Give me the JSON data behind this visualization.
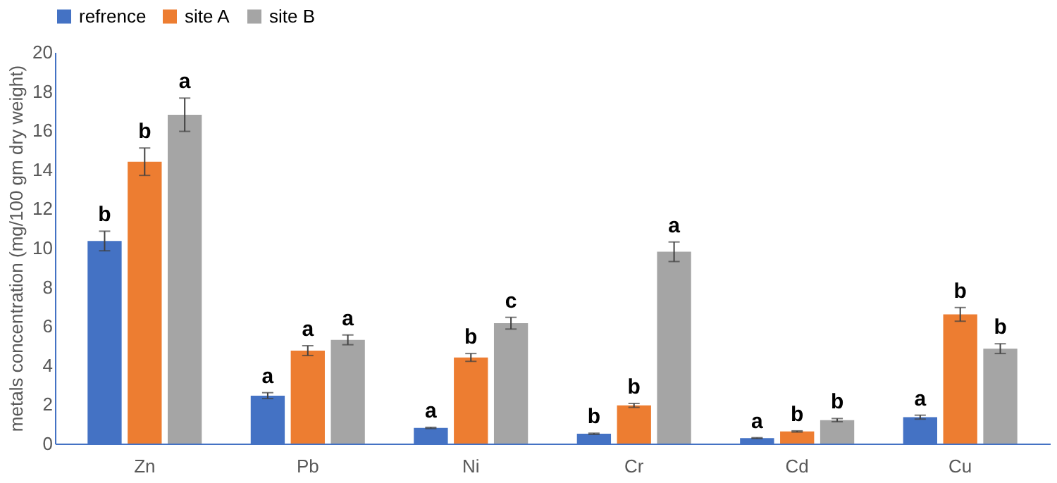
{
  "chart_data": {
    "type": "bar",
    "ylabel": "metals concentration (mg/100 gm dry weight)",
    "categories": [
      "Zn",
      "Pb",
      "Ni",
      "Cr",
      "Cd",
      "Cu"
    ],
    "series": [
      {
        "name": "refrence",
        "color": "#4472c4",
        "values": [
          10.35,
          2.45,
          0.8,
          0.5,
          0.28,
          1.35
        ],
        "errors": [
          0.5,
          0.15,
          0.03,
          0.03,
          0.02,
          0.1
        ],
        "value_labels": [
          "b",
          "a",
          "a",
          "b",
          "a",
          "a"
        ]
      },
      {
        "name": "site A",
        "color": "#ed7d31",
        "values": [
          14.4,
          4.75,
          4.4,
          1.95,
          0.62,
          6.6
        ],
        "errors": [
          0.7,
          0.25,
          0.2,
          0.1,
          0.03,
          0.35
        ],
        "value_labels": [
          "b",
          "a",
          "b",
          "b",
          "b",
          "b"
        ]
      },
      {
        "name": "site B",
        "color": "#a5a5a5",
        "values": [
          16.8,
          5.3,
          6.15,
          9.8,
          1.2,
          4.85
        ],
        "errors": [
          0.85,
          0.25,
          0.3,
          0.5,
          0.08,
          0.25
        ],
        "value_labels": [
          "a",
          "a",
          "c",
          "a",
          "b",
          "b"
        ]
      }
    ],
    "ylim": [
      0,
      20
    ],
    "yticks": [
      0,
      2,
      4,
      6,
      8,
      10,
      12,
      14,
      16,
      18,
      20
    ],
    "grid": false,
    "legend": "top"
  }
}
